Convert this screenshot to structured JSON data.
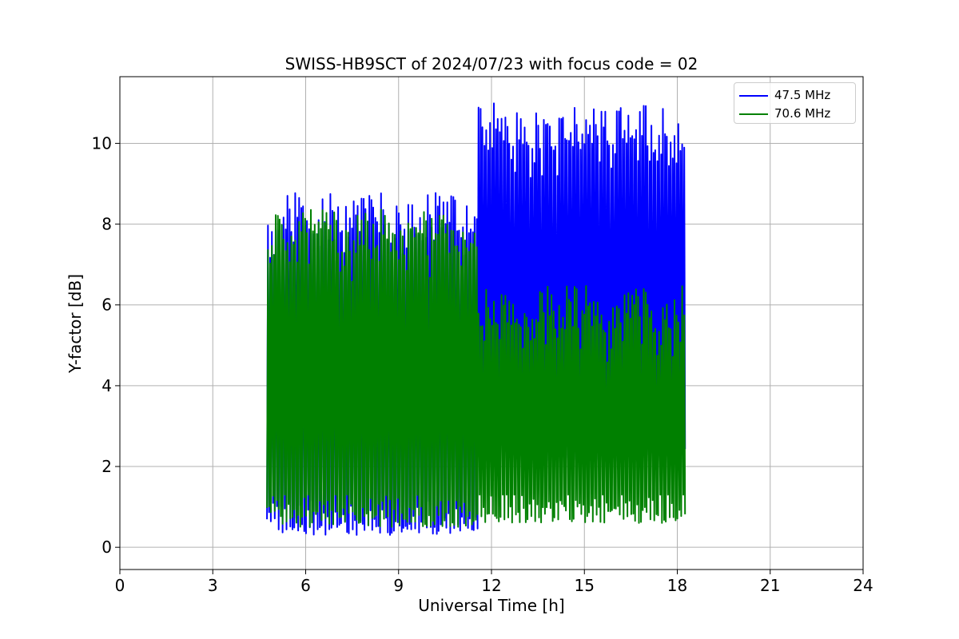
{
  "chart_data": {
    "type": "line",
    "title": "SWISS-HB9SCT of 2024/07/23 with focus code = 02",
    "xlabel": "Universal Time [h]",
    "ylabel": "Y-factor [dB]",
    "xlim": [
      0,
      24
    ],
    "ylim": [
      -0.55,
      11.65
    ],
    "xticks": [
      0,
      3,
      6,
      9,
      12,
      15,
      18,
      21,
      24
    ],
    "yticks": [
      0,
      2,
      4,
      6,
      8,
      10
    ],
    "grid": true,
    "legend_position": "top-right",
    "series": [
      {
        "name": "47.5 MHz",
        "color": "#0000ff",
        "segments": [
          {
            "x": [
              4.75,
              11.55
            ],
            "low": 0.3,
            "high": 8.2
          },
          {
            "x": [
              11.55,
              18.25
            ],
            "low": 2.1,
            "high": 10.4
          }
        ],
        "peak_max": 11.1,
        "trough_max": 6.0
      },
      {
        "name": "70.6 MHz",
        "color": "#008000",
        "segments": [
          {
            "x": [
              4.75,
              11.55
            ],
            "low": 0.5,
            "high": 7.8
          },
          {
            "x": [
              11.55,
              18.25
            ],
            "low": 0.6,
            "high": 5.9
          }
        ],
        "peak_max": 8.75,
        "trough_max": 1.3
      }
    ]
  }
}
